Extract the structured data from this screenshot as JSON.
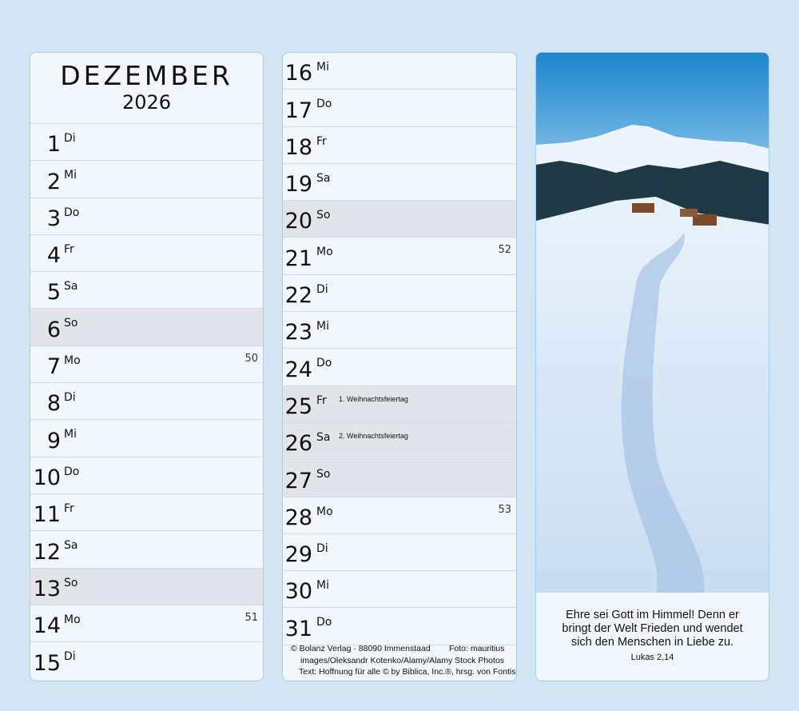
{
  "header": {
    "month": "DEZEMBER",
    "year": "2026"
  },
  "days": [
    {
      "num": "1",
      "wd": "Di"
    },
    {
      "num": "2",
      "wd": "Mi"
    },
    {
      "num": "3",
      "wd": "Do"
    },
    {
      "num": "4",
      "wd": "Fr"
    },
    {
      "num": "5",
      "wd": "Sa"
    },
    {
      "num": "6",
      "wd": "So",
      "sunday": true
    },
    {
      "num": "7",
      "wd": "Mo",
      "week": "50"
    },
    {
      "num": "8",
      "wd": "Di"
    },
    {
      "num": "9",
      "wd": "Mi"
    },
    {
      "num": "10",
      "wd": "Do"
    },
    {
      "num": "11",
      "wd": "Fr"
    },
    {
      "num": "12",
      "wd": "Sa"
    },
    {
      "num": "13",
      "wd": "So",
      "sunday": true
    },
    {
      "num": "14",
      "wd": "Mo",
      "week": "51"
    },
    {
      "num": "15",
      "wd": "Di"
    },
    {
      "num": "16",
      "wd": "Mi"
    },
    {
      "num": "17",
      "wd": "Do"
    },
    {
      "num": "18",
      "wd": "Fr"
    },
    {
      "num": "19",
      "wd": "Sa"
    },
    {
      "num": "20",
      "wd": "So",
      "sunday": true
    },
    {
      "num": "21",
      "wd": "Mo",
      "week": "52"
    },
    {
      "num": "22",
      "wd": "Di"
    },
    {
      "num": "23",
      "wd": "Mi"
    },
    {
      "num": "24",
      "wd": "Do"
    },
    {
      "num": "25",
      "wd": "Fr",
      "note": "1. Weihnachtsfeiertag",
      "sunday": true
    },
    {
      "num": "26",
      "wd": "Sa",
      "note": "2. Weihnachtsfeiertag",
      "sunday": true
    },
    {
      "num": "27",
      "wd": "So",
      "sunday": true
    },
    {
      "num": "28",
      "wd": "Mo",
      "week": "53"
    },
    {
      "num": "29",
      "wd": "Di"
    },
    {
      "num": "30",
      "wd": "Mi"
    },
    {
      "num": "31",
      "wd": "Do"
    }
  ],
  "credits": {
    "line1": "© Bolanz Verlag · 88090 Immenstaad        Foto: mauritius",
    "line2": "images/Oleksandr Kotenko/Alamy/Alamy Stock Photos",
    "line3": "Text: Hoffnung für alle © by Biblica, Inc.®, hrsg. von Fontis"
  },
  "quote": {
    "line1": "Ehre sei Gott im Himmel! Denn er",
    "line2": "bringt der Welt Frieden und wendet",
    "line3": "sich den Menschen in Liebe zu.",
    "reference": "Lukas 2,14"
  },
  "colors": {
    "background": "#d3e5f3",
    "panel": "#f1f7fc",
    "sunday": "#e1e5ea",
    "border": "#a9cde6"
  }
}
